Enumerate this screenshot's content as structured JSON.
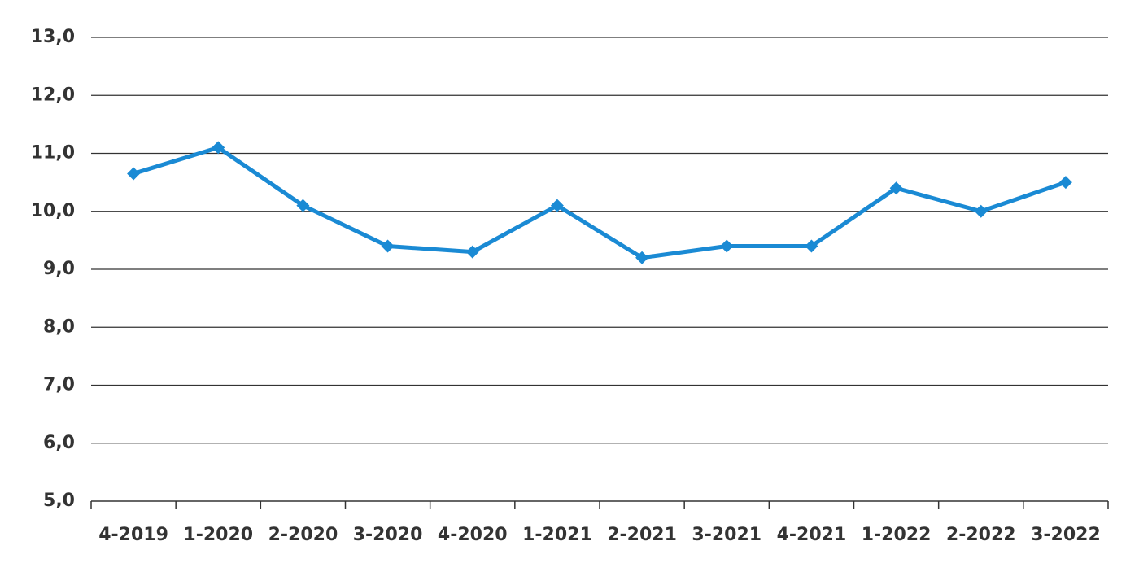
{
  "chart_data": {
    "type": "line",
    "categories": [
      "4-2019",
      "1-2020",
      "2-2020",
      "3-2020",
      "4-2020",
      "1-2021",
      "2-2021",
      "3-2021",
      "4-2021",
      "1-2022",
      "2-2022",
      "3-2022"
    ],
    "values": [
      10.65,
      11.1,
      10.1,
      9.4,
      9.3,
      10.1,
      9.2,
      9.4,
      9.4,
      10.4,
      10.0,
      10.5
    ],
    "color": "#1a8ad4",
    "ylim": [
      5,
      13
    ],
    "yticks": [
      {
        "value": 5,
        "label": "5,0"
      },
      {
        "value": 6,
        "label": "6,0"
      },
      {
        "value": 7,
        "label": "7,0"
      },
      {
        "value": 8,
        "label": "8,0"
      },
      {
        "value": 9,
        "label": "9,0"
      },
      {
        "value": 10,
        "label": "10,0"
      },
      {
        "value": 11,
        "label": "11,0"
      },
      {
        "value": 12,
        "label": "12,0"
      },
      {
        "value": 13,
        "label": "13,0"
      }
    ],
    "grid": true
  }
}
